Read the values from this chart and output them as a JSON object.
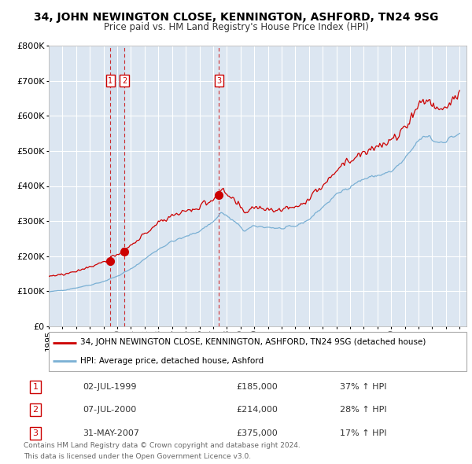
{
  "title": "34, JOHN NEWINGTON CLOSE, KENNINGTON, ASHFORD, TN24 9SG",
  "subtitle": "Price paid vs. HM Land Registry's House Price Index (HPI)",
  "legend_line1": "34, JOHN NEWINGTON CLOSE, KENNINGTON, ASHFORD, TN24 9SG (detached house)",
  "legend_line2": "HPI: Average price, detached house, Ashford",
  "footer1": "Contains HM Land Registry data © Crown copyright and database right 2024.",
  "footer2": "This data is licensed under the Open Government Licence v3.0.",
  "transactions": [
    {
      "num": 1,
      "date": "02-JUL-1999",
      "price": 185000,
      "hpi_pct": "37% ↑ HPI"
    },
    {
      "num": 2,
      "date": "07-JUL-2000",
      "price": 214000,
      "hpi_pct": "28% ↑ HPI"
    },
    {
      "num": 3,
      "date": "31-MAY-2007",
      "price": 375000,
      "hpi_pct": "17% ↑ HPI"
    }
  ],
  "property_color": "#cc0000",
  "hpi_color": "#7ab0d4",
  "vline_color": "#cc0000",
  "background_color": "#dce6f1",
  "grid_color": "#ffffff",
  "ylim": [
    0,
    800000
  ],
  "yticks": [
    0,
    100000,
    200000,
    300000,
    400000,
    500000,
    600000,
    700000,
    800000
  ],
  "xlim_start": 1995,
  "xlim_end": 2025.5
}
